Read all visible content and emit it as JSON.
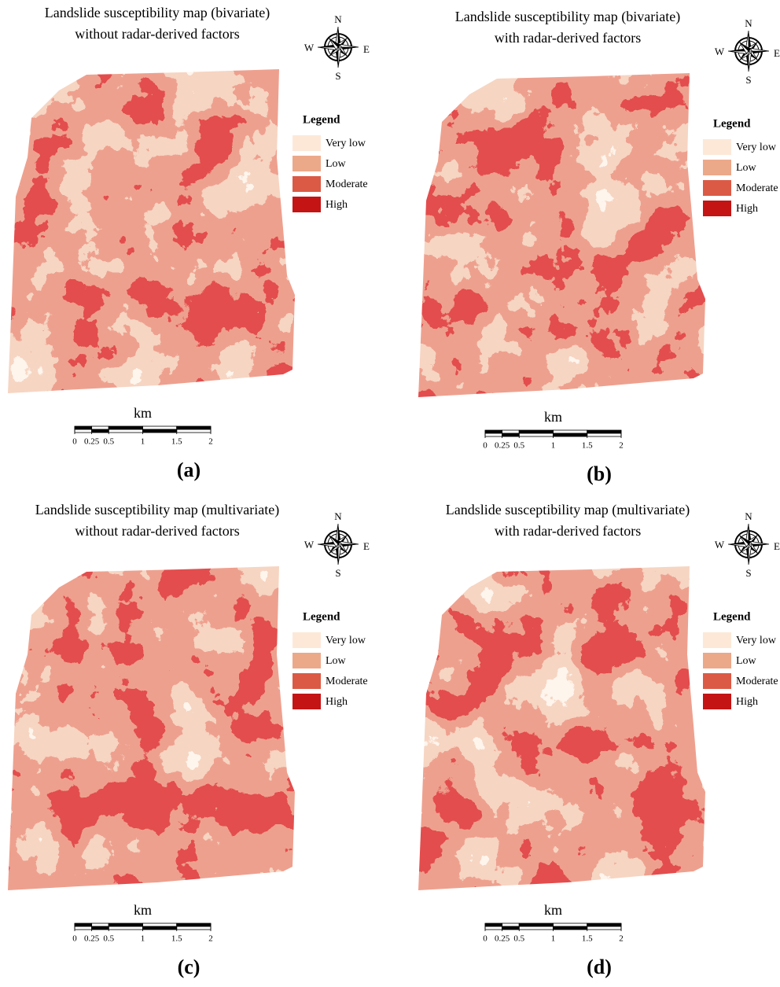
{
  "panels": [
    {
      "title": [
        "Landslide susceptibility map (bivariate)",
        "without radar-derived factors"
      ],
      "compass": {
        "n": "N",
        "e": "E",
        "s": "S",
        "w": "W"
      },
      "legend": {
        "title": "Legend",
        "items": [
          {
            "label": "Very low",
            "color": "#fde8d8"
          },
          {
            "label": "Low",
            "color": "#eca98a"
          },
          {
            "label": "Moderate",
            "color": "#db5a45"
          },
          {
            "label": "High",
            "color": "#c41414"
          }
        ]
      },
      "scale": {
        "unit": "km",
        "ticks": [
          0,
          0.25,
          0.5,
          1,
          1.5,
          2
        ]
      },
      "label": "(a)"
    },
    {
      "title": [
        "Landslide susceptibility map (bivariate)",
        "with radar-derived factors"
      ],
      "compass": {
        "n": "N",
        "e": "E",
        "s": "S",
        "w": "W"
      },
      "legend": {
        "title": "Legend",
        "items": [
          {
            "label": "Very low",
            "color": "#fde8d8"
          },
          {
            "label": "Low",
            "color": "#eca98a"
          },
          {
            "label": "Moderate",
            "color": "#db5a45"
          },
          {
            "label": "High",
            "color": "#c41414"
          }
        ]
      },
      "scale": {
        "unit": "km",
        "ticks": [
          0,
          0.25,
          0.5,
          1,
          1.5,
          2
        ]
      },
      "label": "(b)"
    },
    {
      "title": [
        "Landslide susceptibility map (multivariate)",
        "without radar-derived factors"
      ],
      "compass": {
        "n": "N",
        "e": "E",
        "s": "S",
        "w": "W"
      },
      "legend": {
        "title": "Legend",
        "items": [
          {
            "label": "Very low",
            "color": "#fde8d8"
          },
          {
            "label": "Low",
            "color": "#eca98a"
          },
          {
            "label": "Moderate",
            "color": "#db5a45"
          },
          {
            "label": "High",
            "color": "#c41414"
          }
        ]
      },
      "scale": {
        "unit": "km",
        "ticks": [
          0,
          0.25,
          0.5,
          1,
          1.5,
          2
        ]
      },
      "label": "(c)"
    },
    {
      "title": [
        "Landslide susceptibility map (multivariate)",
        "with radar-derived factors"
      ],
      "compass": {
        "n": "N",
        "e": "E",
        "s": "S",
        "w": "W"
      },
      "legend": {
        "title": "Legend",
        "items": [
          {
            "label": "Very low",
            "color": "#fde8d8"
          },
          {
            "label": "Low",
            "color": "#eca98a"
          },
          {
            "label": "Moderate",
            "color": "#db5a45"
          },
          {
            "label": "High",
            "color": "#c41414"
          }
        ]
      },
      "scale": {
        "unit": "km",
        "ticks": [
          0,
          0.25,
          0.5,
          1,
          1.5,
          2
        ]
      },
      "label": "(d)"
    }
  ]
}
